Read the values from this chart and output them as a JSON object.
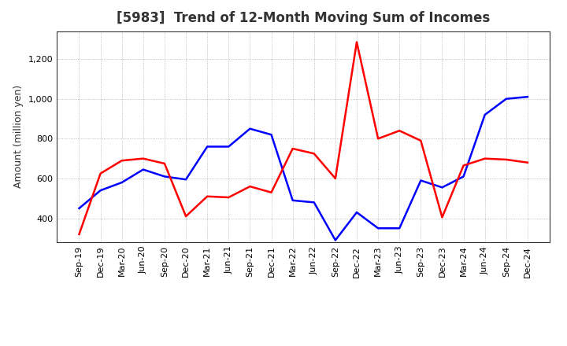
{
  "title": "[5983]  Trend of 12-Month Moving Sum of Incomes",
  "ylabel": "Amount (million yen)",
  "x_labels": [
    "Sep-19",
    "Dec-19",
    "Mar-20",
    "Jun-20",
    "Sep-20",
    "Dec-20",
    "Mar-21",
    "Jun-21",
    "Sep-21",
    "Dec-21",
    "Mar-22",
    "Jun-22",
    "Sep-22",
    "Dec-22",
    "Mar-23",
    "Jun-23",
    "Sep-23",
    "Dec-23",
    "Mar-24",
    "Jun-24",
    "Sep-24",
    "Dec-24"
  ],
  "ordinary_income": [
    450,
    540,
    580,
    645,
    610,
    595,
    760,
    760,
    850,
    820,
    490,
    480,
    290,
    430,
    350,
    350,
    590,
    555,
    610,
    920,
    1000,
    1010
  ],
  "net_income": [
    320,
    625,
    690,
    700,
    675,
    410,
    510,
    505,
    560,
    530,
    750,
    725,
    600,
    1285,
    800,
    840,
    790,
    405,
    665,
    700,
    695,
    680
  ],
  "ordinary_color": "#0000ff",
  "net_color": "#ff0000",
  "line_width": 1.8,
  "ylim_min": 280,
  "ylim_max": 1340,
  "yticks": [
    400,
    600,
    800,
    1000,
    1200
  ],
  "background_color": "#ffffff",
  "grid_color": "#999999",
  "title_fontsize": 12,
  "title_color": "#333333",
  "tick_fontsize": 8,
  "ylabel_fontsize": 9
}
